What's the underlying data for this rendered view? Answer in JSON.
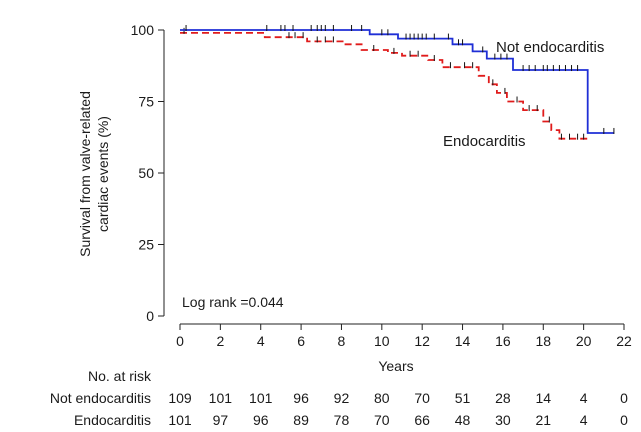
{
  "chart_data": {
    "type": "line",
    "subtype": "kaplan-meier",
    "title": "",
    "xlabel": "Years",
    "ylabel_lines": [
      "Survival from valve-related",
      "cardiac events (%)"
    ],
    "xlim": [
      0,
      22
    ],
    "ylim": [
      0,
      100
    ],
    "xticks": [
      0,
      2,
      4,
      6,
      8,
      10,
      12,
      14,
      16,
      18,
      20,
      22
    ],
    "yticks": [
      0,
      25,
      50,
      75,
      100
    ],
    "grid": false,
    "legend": "none",
    "annotation": "Log rank =0.044",
    "series": [
      {
        "name": "Not endocarditis",
        "color": "#1f2fd6",
        "dash": "solid",
        "steps": [
          [
            0,
            100
          ],
          [
            9.4,
            100
          ],
          [
            9.4,
            98.5
          ],
          [
            10.8,
            98.5
          ],
          [
            10.8,
            97
          ],
          [
            13.5,
            97
          ],
          [
            13.5,
            95
          ],
          [
            14.5,
            95
          ],
          [
            14.5,
            92.5
          ],
          [
            15.2,
            92.5
          ],
          [
            15.2,
            90
          ],
          [
            16.5,
            90
          ],
          [
            16.5,
            86
          ],
          [
            20.2,
            86
          ],
          [
            20.2,
            64
          ],
          [
            21.5,
            64
          ]
        ],
        "censors": [
          0.3,
          4.3,
          5.0,
          5.2,
          5.6,
          6.5,
          6.8,
          7.0,
          7.2,
          7.6,
          8.5,
          9.0,
          10.0,
          10.3,
          11.2,
          11.4,
          11.6,
          11.8,
          12.0,
          12.2,
          12.6,
          13.3,
          13.8,
          14.0,
          15.0,
          15.6,
          15.9,
          16.2,
          17.0,
          17.3,
          17.6,
          18.0,
          18.2,
          18.5,
          18.8,
          19.1,
          19.4,
          19.7,
          21.0,
          21.5
        ]
      },
      {
        "name": "Endocarditis",
        "color": "#e01b1b",
        "dash": "dashed",
        "steps": [
          [
            0,
            99
          ],
          [
            4.2,
            99
          ],
          [
            4.2,
            97.5
          ],
          [
            6.3,
            97.5
          ],
          [
            6.3,
            96
          ],
          [
            8.2,
            96
          ],
          [
            8.2,
            95
          ],
          [
            9.0,
            95
          ],
          [
            9.0,
            93
          ],
          [
            10.3,
            93
          ],
          [
            10.3,
            92
          ],
          [
            11.0,
            92
          ],
          [
            11.0,
            91
          ],
          [
            12.3,
            91
          ],
          [
            12.3,
            89.5
          ],
          [
            13.0,
            89.5
          ],
          [
            13.0,
            87
          ],
          [
            14.8,
            87
          ],
          [
            14.8,
            84
          ],
          [
            15.3,
            84
          ],
          [
            15.3,
            81
          ],
          [
            15.7,
            81
          ],
          [
            15.7,
            78
          ],
          [
            16.2,
            78
          ],
          [
            16.2,
            75
          ],
          [
            17.0,
            75
          ],
          [
            17.0,
            72
          ],
          [
            18.0,
            72
          ],
          [
            18.0,
            68
          ],
          [
            18.4,
            68
          ],
          [
            18.4,
            65
          ],
          [
            18.8,
            65
          ],
          [
            18.8,
            62
          ],
          [
            20.3,
            62
          ]
        ],
        "censors": [
          0.2,
          5.4,
          5.7,
          6.1,
          6.8,
          7.2,
          7.6,
          9.6,
          10.6,
          11.4,
          11.8,
          12.6,
          13.4,
          14.1,
          14.5,
          15.5,
          16.1,
          16.7,
          17.3,
          17.7,
          18.3,
          18.9,
          19.3,
          19.7,
          20.0
        ]
      }
    ],
    "curve_labels": {
      "not_endocarditis": "Not endocarditis",
      "endocarditis": "Endocarditis"
    },
    "risk_table": {
      "title": "No. at risk",
      "times": [
        0,
        2,
        4,
        6,
        8,
        10,
        12,
        14,
        16,
        18,
        20,
        22
      ],
      "rows": [
        {
          "label": "Not endocarditis",
          "values": [
            109,
            101,
            101,
            96,
            92,
            80,
            70,
            51,
            28,
            14,
            4,
            0
          ]
        },
        {
          "label": "Endocarditis",
          "values": [
            101,
            97,
            96,
            89,
            78,
            70,
            66,
            48,
            30,
            21,
            4,
            0
          ]
        }
      ]
    }
  }
}
